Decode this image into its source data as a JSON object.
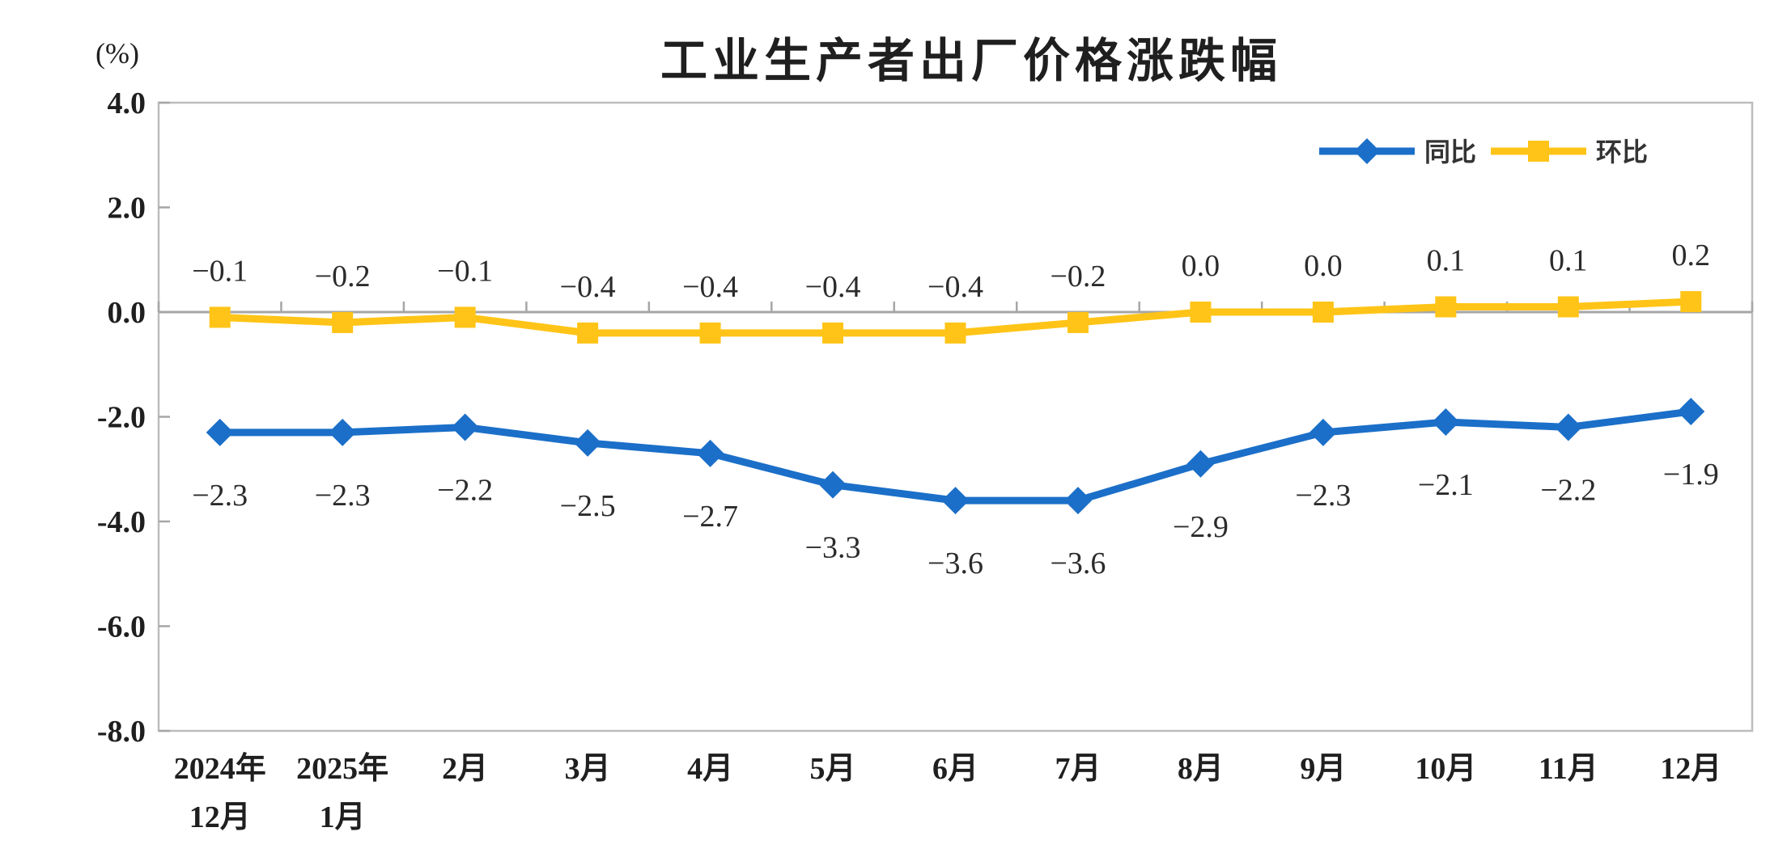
{
  "chart_data": {
    "type": "line",
    "title": "工业生产者出厂价格涨跌幅",
    "ylabel": "(%)",
    "ylim": [
      -8.0,
      4.0
    ],
    "ytick_step": 2.0,
    "ytick_labels": [
      "4.0",
      "2.0",
      "0.0",
      "-2.0",
      "-4.0",
      "-6.0",
      "-8.0"
    ],
    "grid": false,
    "legend_position": "top-right",
    "categories": [
      "2024年12月",
      "2025年1月",
      "2月",
      "3月",
      "4月",
      "5月",
      "6月",
      "7月",
      "8月",
      "9月",
      "10月",
      "11月",
      "12月"
    ],
    "x_label_lines": [
      [
        "2024年",
        "12月"
      ],
      [
        "2025年",
        "1月"
      ],
      [
        "2月"
      ],
      [
        "3月"
      ],
      [
        "4月"
      ],
      [
        "5月"
      ],
      [
        "6月"
      ],
      [
        "7月"
      ],
      [
        "8月"
      ],
      [
        "9月"
      ],
      [
        "10月"
      ],
      [
        "11月"
      ],
      [
        "12月"
      ]
    ],
    "series": [
      {
        "name": "同比",
        "color": "#1B6FC8",
        "marker": "diamond",
        "labels_position": "below",
        "values": [
          -2.3,
          -2.3,
          -2.2,
          -2.5,
          -2.7,
          -3.3,
          -3.6,
          -3.6,
          -2.9,
          -2.3,
          -2.1,
          -2.2,
          -1.9
        ],
        "labels": [
          "−2.3",
          "−2.3",
          "−2.2",
          "−2.5",
          "−2.7",
          "−3.3",
          "−3.6",
          "−3.6",
          "−2.9",
          "−2.3",
          "−2.1",
          "−2.2",
          "−1.9"
        ]
      },
      {
        "name": "环比",
        "color": "#FFC417",
        "marker": "square",
        "labels_position": "above",
        "values": [
          -0.1,
          -0.2,
          -0.1,
          -0.4,
          -0.4,
          -0.4,
          -0.4,
          -0.2,
          0.0,
          0.0,
          0.1,
          0.1,
          0.2
        ],
        "labels": [
          "−0.1",
          "−0.2",
          "−0.1",
          "−0.4",
          "−0.4",
          "−0.4",
          "−0.4",
          "−0.2",
          "0.0",
          "0.0",
          "0.1",
          "0.1",
          "0.2"
        ]
      }
    ],
    "axis_colors": {
      "zero_line": "#A6A6A6",
      "border": "#BDBDBD",
      "tick": "#A6A6A6"
    }
  }
}
